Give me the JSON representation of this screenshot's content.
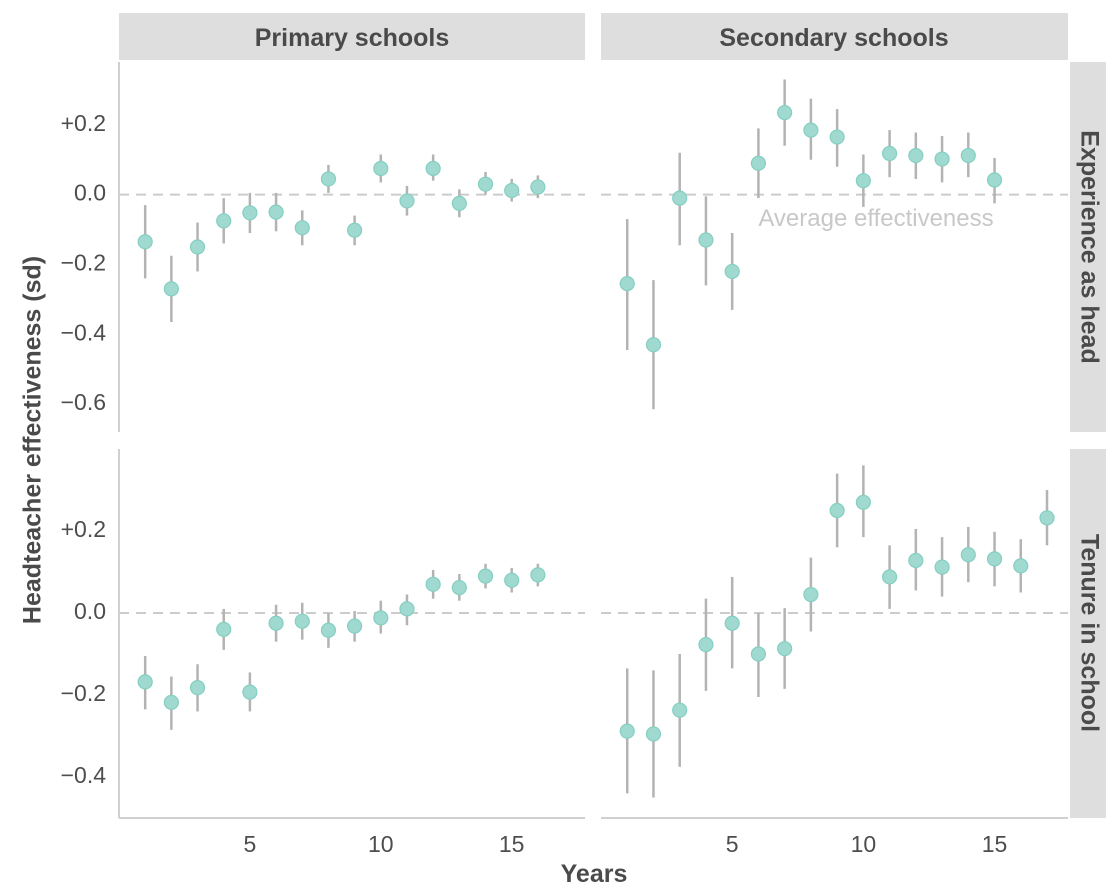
{
  "chart_data": {
    "type": "scatter",
    "xlabel": "Years",
    "ylabel": "Headteacher effectiveness (sd)",
    "columns": [
      "Primary schools",
      "Secondary schools"
    ],
    "rows": [
      "Experience as head",
      "Tenure in school"
    ],
    "reference_line": {
      "y": 0,
      "label": "Average effectiveness"
    },
    "xlim": [
      0,
      17.8
    ],
    "x_ticks": [
      "5",
      "10",
      "15"
    ],
    "panels": [
      {
        "column": "Primary schools",
        "row": "Experience as head",
        "ylim": [
          -0.68,
          0.38
        ],
        "y_ticks": [
          "+0.2",
          "0.0",
          "−0.2",
          "−0.4",
          "−0.6"
        ],
        "x": [
          1,
          2,
          3,
          4,
          5,
          6,
          7,
          8,
          9,
          10,
          11,
          12,
          13,
          14,
          15,
          16
        ],
        "y": [
          -0.135,
          -0.27,
          -0.15,
          -0.075,
          -0.052,
          -0.05,
          -0.095,
          0.045,
          -0.102,
          0.075,
          -0.018,
          0.075,
          -0.025,
          0.03,
          0.012,
          0.022
        ],
        "lower": [
          -0.24,
          -0.365,
          -0.22,
          -0.14,
          -0.11,
          -0.105,
          -0.145,
          0.005,
          -0.145,
          0.035,
          -0.06,
          0.04,
          -0.065,
          0.0,
          -0.02,
          -0.01
        ],
        "upper": [
          -0.03,
          -0.175,
          -0.08,
          -0.01,
          0.005,
          0.005,
          -0.045,
          0.085,
          -0.06,
          0.115,
          0.025,
          0.115,
          0.015,
          0.065,
          0.045,
          0.055
        ]
      },
      {
        "column": "Secondary schools",
        "row": "Experience as head",
        "ylim": [
          -0.68,
          0.38
        ],
        "y_ticks": [
          "+0.2",
          "0.0",
          "−0.2",
          "−0.4",
          "−0.6"
        ],
        "x": [
          1,
          2,
          3,
          4,
          5,
          6,
          7,
          8,
          9,
          10,
          11,
          12,
          13,
          14,
          15
        ],
        "y": [
          -0.255,
          -0.43,
          -0.01,
          -0.13,
          -0.22,
          0.09,
          0.235,
          0.185,
          0.165,
          0.04,
          0.118,
          0.112,
          0.102,
          0.112,
          0.042
        ],
        "lower": [
          -0.445,
          -0.615,
          -0.145,
          -0.26,
          -0.33,
          -0.01,
          0.14,
          0.1,
          0.08,
          -0.035,
          0.05,
          0.045,
          0.035,
          0.05,
          -0.025
        ],
        "upper": [
          -0.07,
          -0.245,
          0.12,
          -0.005,
          -0.11,
          0.19,
          0.33,
          0.275,
          0.245,
          0.115,
          0.185,
          0.178,
          0.168,
          0.178,
          0.105
        ]
      },
      {
        "column": "Primary schools",
        "row": "Tenure in school",
        "ylim": [
          -0.5,
          0.4
        ],
        "y_ticks": [
          "+0.2",
          "0.0",
          "−0.2",
          "−0.4"
        ],
        "x": [
          1,
          2,
          3,
          4,
          5,
          6,
          7,
          8,
          9,
          10,
          11,
          12,
          13,
          14,
          15,
          16
        ],
        "y": [
          -0.168,
          -0.218,
          -0.182,
          -0.04,
          -0.193,
          -0.025,
          -0.02,
          -0.042,
          -0.032,
          -0.012,
          0.01,
          0.07,
          0.062,
          0.09,
          0.08,
          0.093
        ],
        "lower": [
          -0.235,
          -0.285,
          -0.24,
          -0.09,
          -0.24,
          -0.07,
          -0.065,
          -0.085,
          -0.07,
          -0.05,
          -0.03,
          0.035,
          0.03,
          0.06,
          0.05,
          0.065
        ],
        "upper": [
          -0.105,
          -0.155,
          -0.125,
          0.01,
          -0.145,
          0.02,
          0.025,
          0.0,
          0.005,
          0.03,
          0.045,
          0.105,
          0.095,
          0.12,
          0.11,
          0.12
        ]
      },
      {
        "column": "Secondary schools",
        "row": "Tenure in school",
        "ylim": [
          -0.5,
          0.4
        ],
        "y_ticks": [
          "+0.2",
          "0.0",
          "−0.2",
          "−0.4"
        ],
        "x": [
          1,
          2,
          3,
          4,
          5,
          6,
          7,
          8,
          9,
          10,
          11,
          12,
          13,
          14,
          15,
          16,
          17
        ],
        "y": [
          -0.288,
          -0.295,
          -0.237,
          -0.077,
          -0.025,
          -0.1,
          -0.087,
          0.045,
          0.25,
          0.27,
          0.088,
          0.128,
          0.112,
          0.142,
          0.132,
          0.115,
          0.232
        ],
        "lower": [
          -0.44,
          -0.45,
          -0.375,
          -0.19,
          -0.135,
          -0.205,
          -0.185,
          -0.045,
          0.16,
          0.185,
          0.01,
          0.055,
          0.04,
          0.075,
          0.065,
          0.05,
          0.165
        ],
        "upper": [
          -0.135,
          -0.14,
          -0.1,
          0.035,
          0.088,
          0.0,
          0.012,
          0.135,
          0.34,
          0.36,
          0.165,
          0.205,
          0.185,
          0.21,
          0.198,
          0.18,
          0.3
        ]
      }
    ]
  }
}
